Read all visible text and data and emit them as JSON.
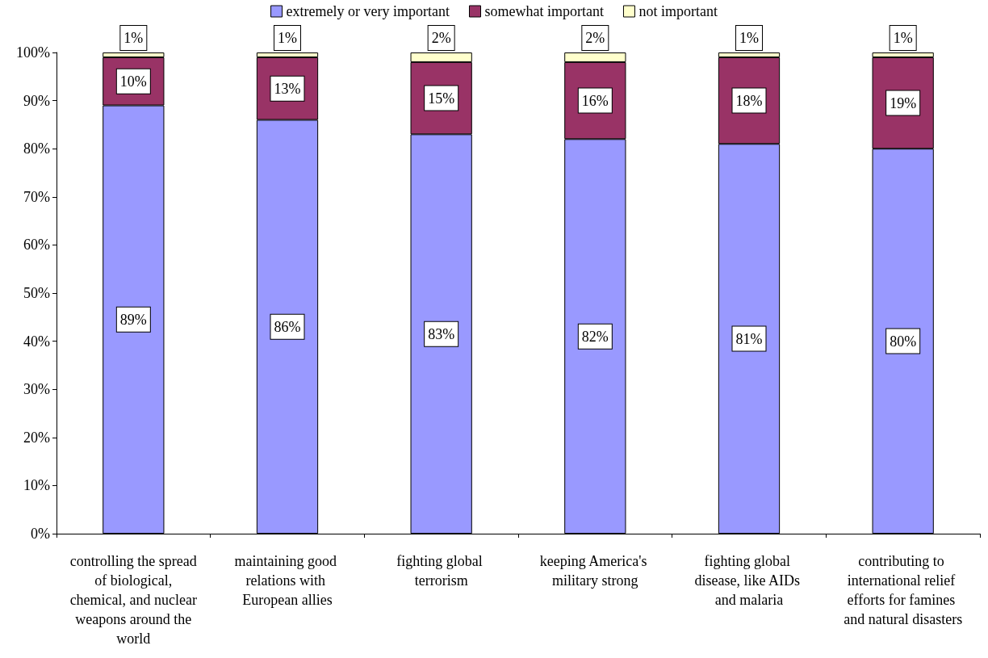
{
  "chart_data": {
    "type": "bar",
    "stacked": true,
    "legend": "top",
    "grid": false,
    "categories": [
      "controlling the spread of biological, chemical, and nuclear weapons around the world",
      "maintaining good relations with European allies",
      "fighting global terrorism",
      "keeping America's military strong",
      "fighting global disease, like AIDs and malaria",
      "contributing to international relief efforts for famines and natural disasters"
    ],
    "series": [
      {
        "name": "extremely or very important",
        "color": "#9999ff",
        "values": [
          89,
          86,
          83,
          82,
          81,
          80
        ],
        "value_labels": [
          "89%",
          "86%",
          "83%",
          "82%",
          "81%",
          "80%"
        ]
      },
      {
        "name": "somewhat important",
        "color": "#993366",
        "values": [
          10,
          13,
          15,
          16,
          18,
          19
        ],
        "value_labels": [
          "10%",
          "13%",
          "15%",
          "16%",
          "18%",
          "19%"
        ]
      },
      {
        "name": "not important",
        "color": "#ffffcc",
        "values": [
          1,
          1,
          2,
          2,
          1,
          1
        ],
        "value_labels": [
          "1%",
          "1%",
          "2%",
          "2%",
          "1%",
          "1%"
        ]
      }
    ],
    "ylim": [
      0,
      100
    ],
    "yticks": [
      {
        "value": 0,
        "label": "0%"
      },
      {
        "value": 10,
        "label": "10%"
      },
      {
        "value": 20,
        "label": "20%"
      },
      {
        "value": 30,
        "label": "30%"
      },
      {
        "value": 40,
        "label": "40%"
      },
      {
        "value": 50,
        "label": "50%"
      },
      {
        "value": 60,
        "label": "60%"
      },
      {
        "value": 70,
        "label": "70%"
      },
      {
        "value": 80,
        "label": "80%"
      },
      {
        "value": 90,
        "label": "90%"
      },
      {
        "value": 100,
        "label": "100%"
      }
    ]
  }
}
